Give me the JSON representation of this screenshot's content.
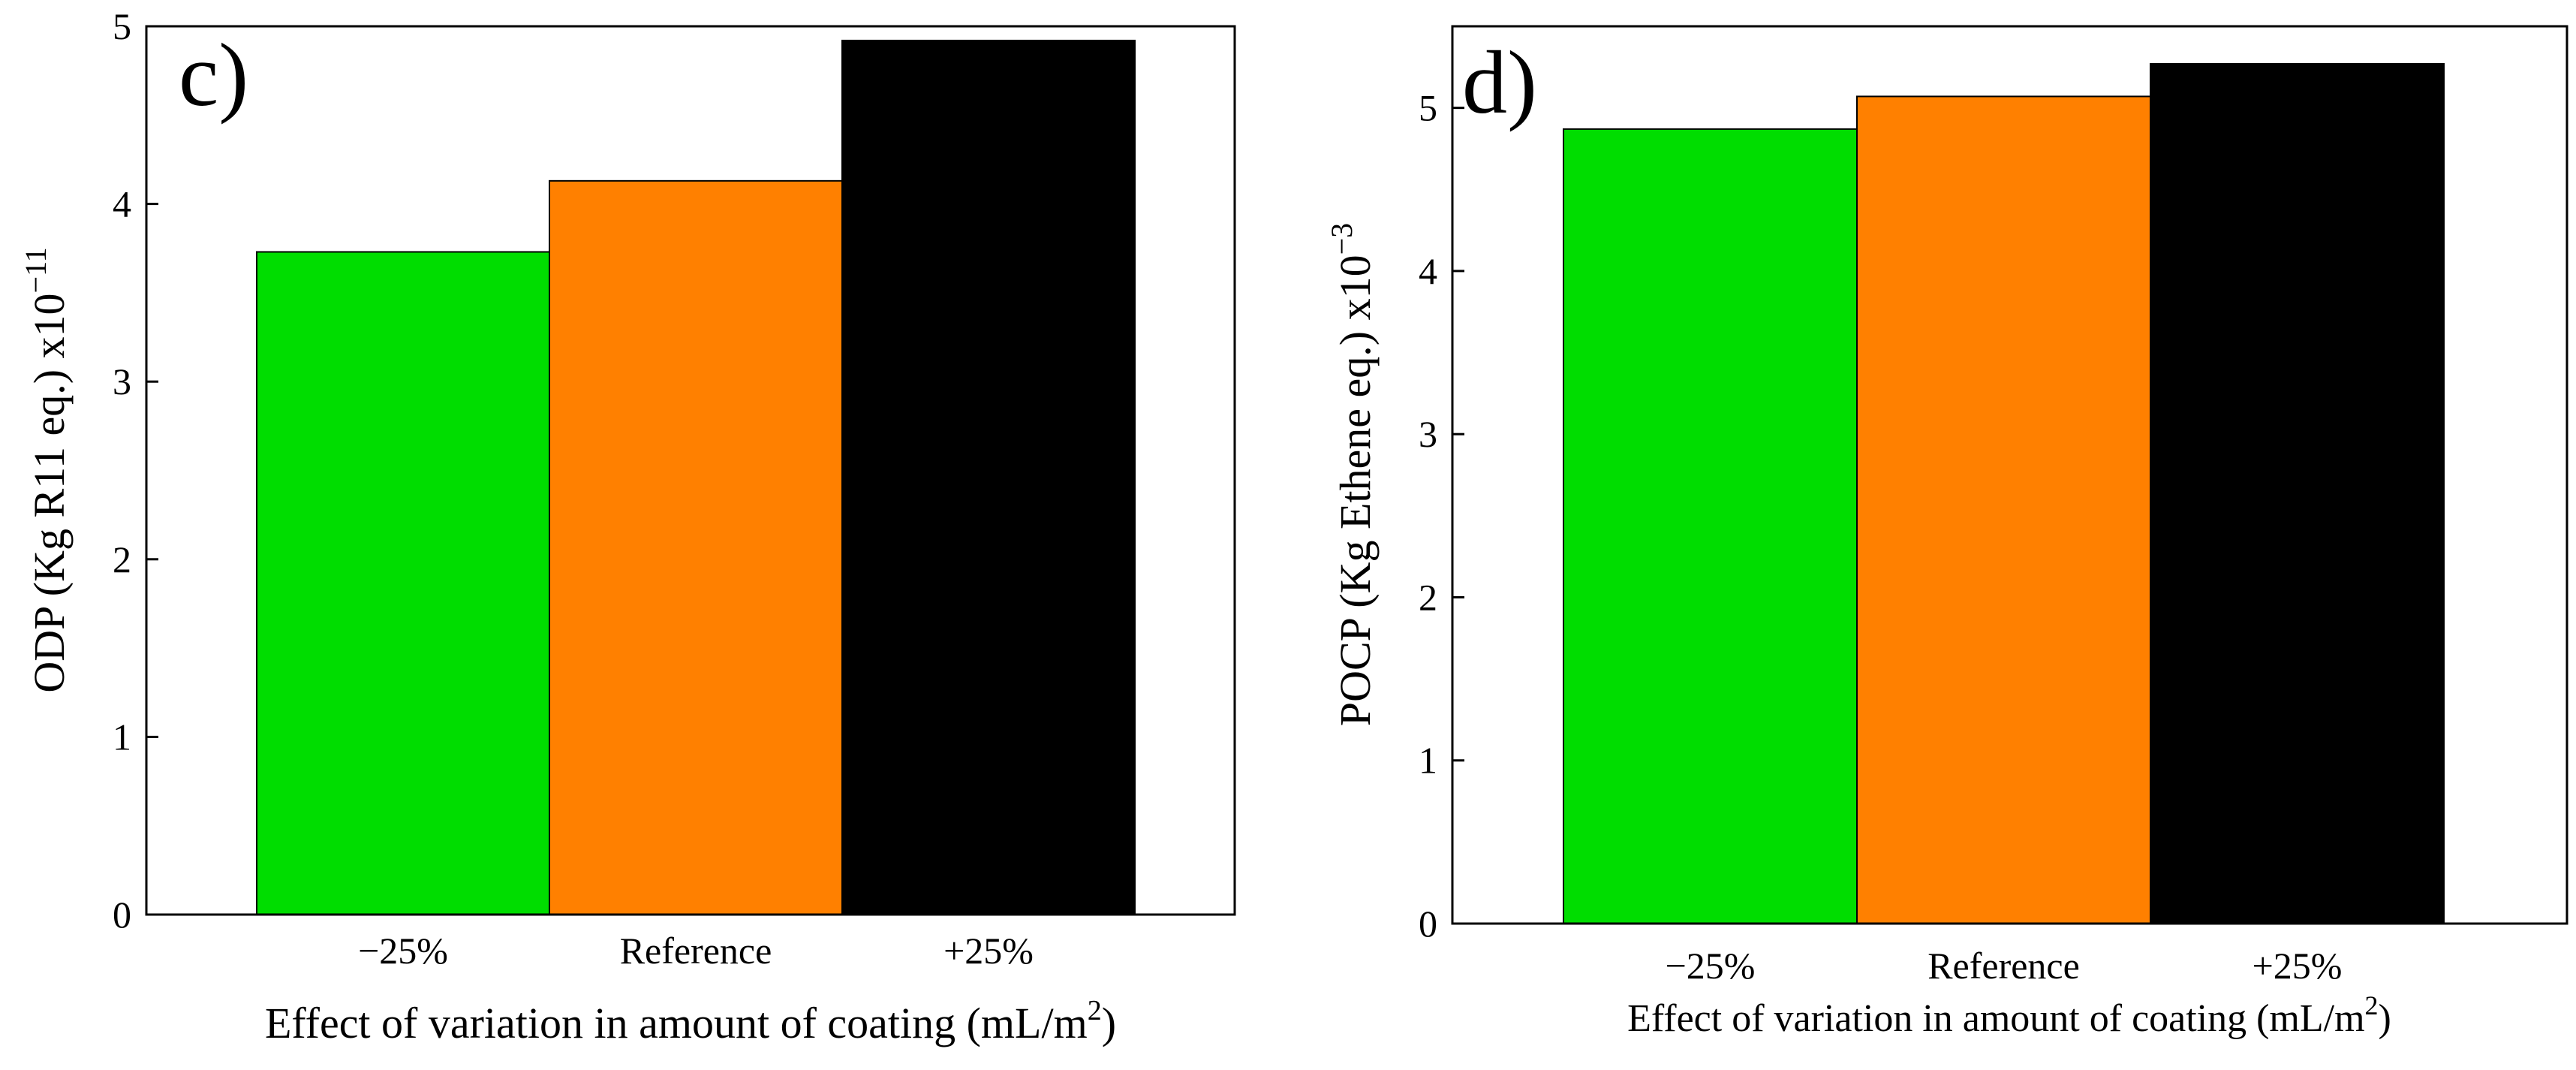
{
  "chart_data": [
    {
      "type": "bar",
      "panel_label": "c)",
      "categories": [
        "−25%",
        "Reference",
        "+25%"
      ],
      "values": [
        3.73,
        4.13,
        4.92
      ],
      "colors": [
        "#00DD00",
        "#FF8000",
        "#000000"
      ],
      "ylim": [
        0,
        5
      ],
      "yticks": [
        0,
        1,
        2,
        3,
        4,
        5
      ],
      "xlabel": "Effect of variation in amount of coating (mL/m",
      "xlabel_sup": "2",
      "xlabel_end": ")",
      "ylabel": "ODP (Kg R11 eq.) x10",
      "ylabel_sup": "−11"
    },
    {
      "type": "bar",
      "panel_label": "d)",
      "categories": [
        "−25%",
        "Reference",
        "+25%"
      ],
      "values": [
        4.87,
        5.07,
        5.27
      ],
      "colors": [
        "#00DD00",
        "#FF8000",
        "#000000"
      ],
      "ylim": [
        0,
        5.5
      ],
      "yticks": [
        0,
        1,
        2,
        3,
        4,
        5
      ],
      "xlabel": "Effect of variation in amount of coating (mL/m",
      "xlabel_sup": "2",
      "xlabel_end": ")",
      "ylabel": "POCP (Kg Ethene eq.) x10",
      "ylabel_sup": "−3"
    }
  ]
}
